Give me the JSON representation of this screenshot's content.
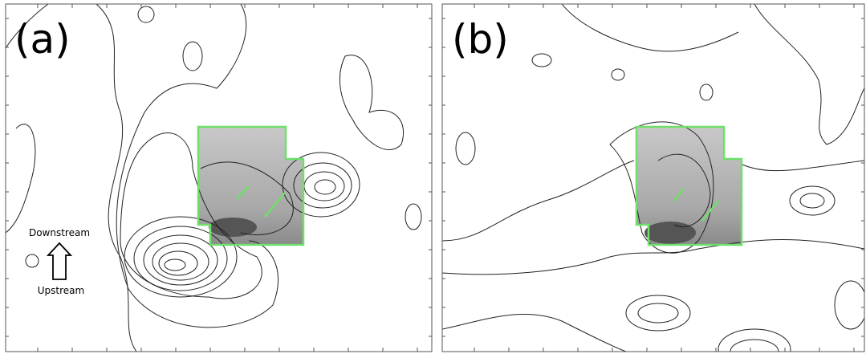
{
  "panels": [
    {
      "label": "(a)"
    },
    {
      "label": "(b)"
    }
  ],
  "annotations": {
    "downstream": "Downstream",
    "upstream": "Upstream"
  }
}
